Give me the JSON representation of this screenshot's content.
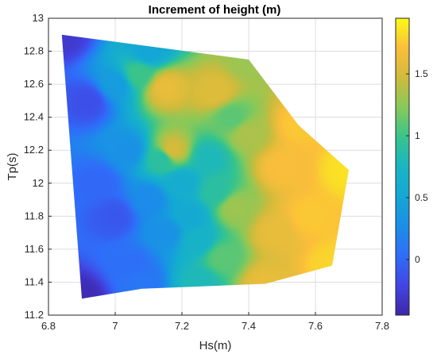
{
  "chart_data": {
    "type": "heatmap",
    "title": "Increment of height (m)",
    "xlabel": "Hs(m)",
    "ylabel": "Tp(s)",
    "xlim": [
      6.8,
      7.8
    ],
    "ylim": [
      11.2,
      13.0
    ],
    "xticks": [
      "6.8",
      "7",
      "7.2",
      "7.4",
      "7.6",
      "7.8"
    ],
    "yticks": [
      "11.2",
      "11.4",
      "11.6",
      "11.8",
      "12",
      "12.2",
      "12.4",
      "12.6",
      "12.8",
      "13"
    ],
    "grid": true,
    "colorbar": {
      "colormap": "parula",
      "clim": [
        -0.45,
        1.95
      ],
      "ticks": [
        "0",
        "0.5",
        "1",
        "1.5"
      ],
      "tick_values": [
        0,
        0.5,
        1,
        1.5
      ]
    },
    "colors": {
      "low": "#3e26a8",
      "mid": "#19b5c4",
      "high": "#f9fb15"
    },
    "points": [
      {
        "x": 6.84,
        "y": 12.9,
        "z": -0.3
      },
      {
        "x": 6.9,
        "y": 11.3,
        "z": -0.4
      },
      {
        "x": 7.1,
        "y": 12.8,
        "z": 0.5
      },
      {
        "x": 7.4,
        "y": 12.75,
        "z": 1.3
      },
      {
        "x": 7.55,
        "y": 12.35,
        "z": 1.75
      },
      {
        "x": 7.7,
        "y": 12.08,
        "z": 1.85
      },
      {
        "x": 7.65,
        "y": 11.5,
        "z": 1.8
      },
      {
        "x": 7.45,
        "y": 11.39,
        "z": 1.6
      },
      {
        "x": 7.25,
        "y": 11.4,
        "z": 0.8
      },
      {
        "x": 7.08,
        "y": 11.4,
        "z": 0.1
      },
      {
        "x": 6.95,
        "y": 12.0,
        "z": 0.0
      },
      {
        "x": 7.0,
        "y": 12.6,
        "z": 0.4
      },
      {
        "x": 7.07,
        "y": 12.66,
        "z": 1.0
      },
      {
        "x": 7.15,
        "y": 12.58,
        "z": 1.6
      },
      {
        "x": 7.3,
        "y": 12.55,
        "z": 1.55
      },
      {
        "x": 7.17,
        "y": 12.2,
        "z": 1.5
      },
      {
        "x": 7.14,
        "y": 12.15,
        "z": 0.9
      },
      {
        "x": 7.04,
        "y": 12.2,
        "z": 0.3
      },
      {
        "x": 7.2,
        "y": 12.0,
        "z": 0.6
      },
      {
        "x": 7.28,
        "y": 12.15,
        "z": 0.8
      },
      {
        "x": 7.3,
        "y": 11.95,
        "z": 0.9
      },
      {
        "x": 7.35,
        "y": 12.4,
        "z": 1.1
      },
      {
        "x": 7.4,
        "y": 12.3,
        "z": 1.35
      },
      {
        "x": 7.36,
        "y": 11.85,
        "z": 1.3
      },
      {
        "x": 7.32,
        "y": 11.55,
        "z": 1.1
      },
      {
        "x": 7.5,
        "y": 12.1,
        "z": 1.7
      },
      {
        "x": 7.48,
        "y": 11.7,
        "z": 1.6
      },
      {
        "x": 7.58,
        "y": 11.8,
        "z": 1.75
      },
      {
        "x": 7.15,
        "y": 11.7,
        "z": 0.3
      },
      {
        "x": 7.1,
        "y": 11.9,
        "z": 0.25
      },
      {
        "x": 7.05,
        "y": 11.5,
        "z": 0.05
      },
      {
        "x": 7.25,
        "y": 11.65,
        "z": 0.7
      },
      {
        "x": 7.22,
        "y": 11.8,
        "z": 0.55
      },
      {
        "x": 7.0,
        "y": 11.8,
        "z": -0.1
      },
      {
        "x": 6.92,
        "y": 12.5,
        "z": -0.15
      }
    ],
    "boundary": [
      {
        "x": 6.84,
        "y": 12.9
      },
      {
        "x": 7.4,
        "y": 12.75
      },
      {
        "x": 7.55,
        "y": 12.35
      },
      {
        "x": 7.7,
        "y": 12.08
      },
      {
        "x": 7.65,
        "y": 11.5
      },
      {
        "x": 7.45,
        "y": 11.39
      },
      {
        "x": 7.08,
        "y": 11.36
      },
      {
        "x": 6.9,
        "y": 11.3
      }
    ]
  }
}
